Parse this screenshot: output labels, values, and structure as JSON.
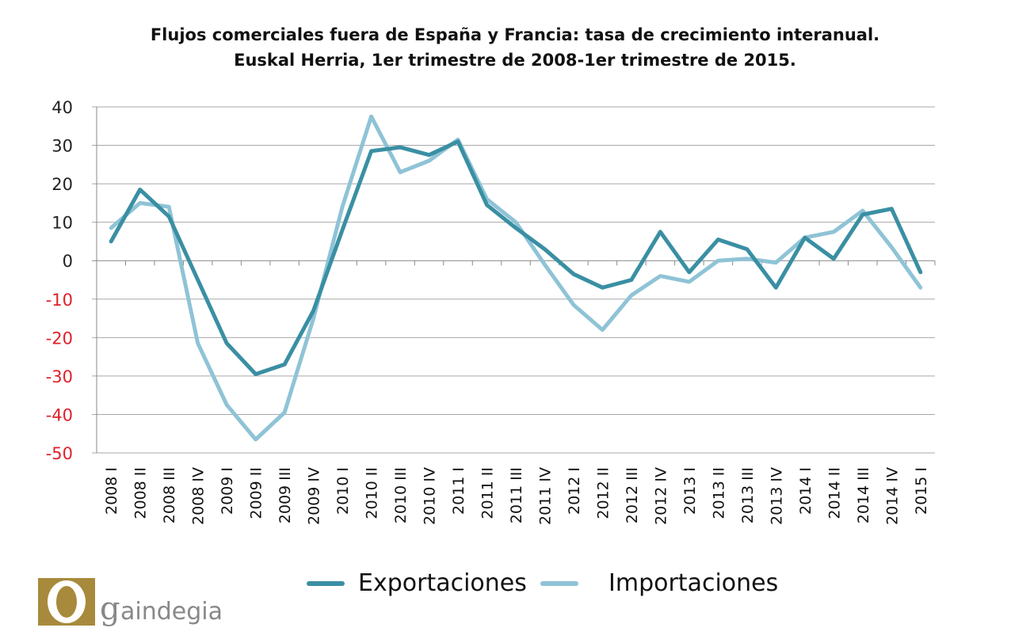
{
  "chart_data": {
    "type": "line",
    "title": "Flujos comerciales fuera de España y Francia: tasa de crecimiento interanual.",
    "subtitle": "Euskal Herria,  1er trimestre de 2008-1er trimestre de 2015.",
    "xlabel": "",
    "ylabel": "",
    "ylim": [
      -50,
      40
    ],
    "yticks": [
      40,
      30,
      20,
      10,
      0,
      -10,
      -20,
      -30,
      -40,
      -50
    ],
    "negative_tick_color": "#e0202a",
    "positive_tick_color": "#222222",
    "grid": true,
    "legend_position": "bottom",
    "categories": [
      "2008 I",
      "2008 II",
      "2008 III",
      "2008 IV",
      "2009 I",
      "2009 II",
      "2009 III",
      "2009 IV",
      "2010 I",
      "2010 II",
      "2010 III",
      "2010 IV",
      "2011 I",
      "2011 II",
      "2011 III",
      "2011 IV",
      "2012 I",
      "2012 II",
      "2012 III",
      "2012 IV",
      "2013 I",
      "2013 II",
      "2013 III",
      "2013 IV",
      "2014 I",
      "2014 II",
      "2014 III",
      "2014 IV",
      "2015 I"
    ],
    "series": [
      {
        "name": "Exportaciones",
        "color": "#3a8fa3",
        "values": [
          5,
          18.5,
          11.5,
          -5,
          -21.5,
          -29.5,
          -27,
          -13,
          8,
          28.5,
          29.5,
          27.5,
          31,
          14.5,
          8.5,
          3,
          -3.5,
          -7,
          -5,
          7.5,
          -3,
          5.5,
          3,
          -7,
          6,
          0.5,
          12,
          13.5,
          -3
        ]
      },
      {
        "name": "Importaciones",
        "color": "#8fc3d6",
        "values": [
          8.5,
          15,
          14,
          -21.5,
          -37.5,
          -46.5,
          -39.5,
          -15,
          14,
          37.5,
          23,
          26,
          31.5,
          16,
          10,
          -1,
          -11.5,
          -18,
          -9,
          -4,
          -5.5,
          0,
          0.5,
          -0.5,
          6,
          7.5,
          13,
          3.5,
          -7
        ]
      }
    ]
  },
  "logo": {
    "brand_text": "gaindegia",
    "colors": {
      "gold": "#a88a3c",
      "gray": "#888888"
    }
  }
}
